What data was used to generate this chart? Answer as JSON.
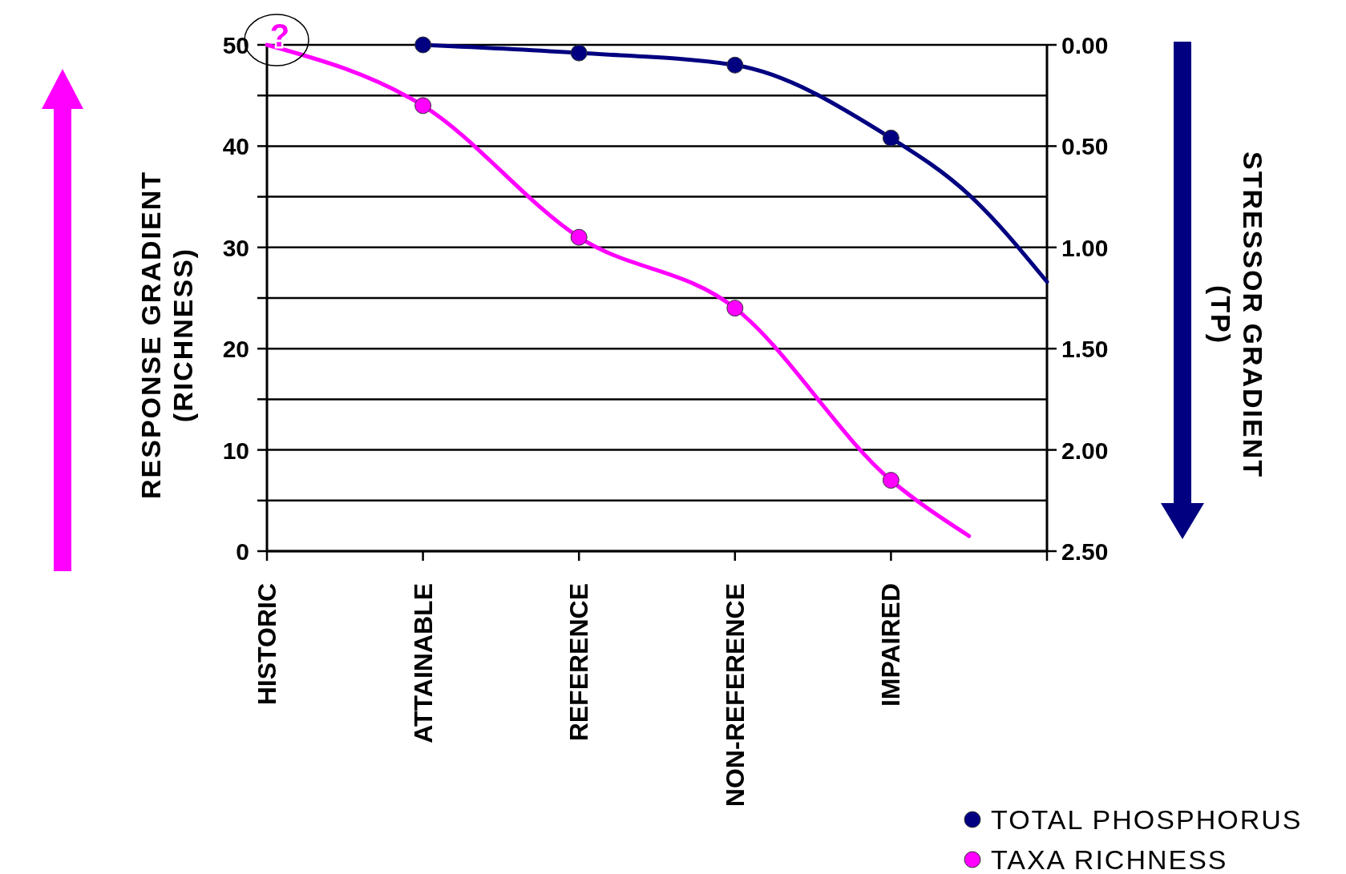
{
  "chart_data": {
    "type": "line",
    "ylabel": "RESPONSE GRADIENT\n(RICHNESS)",
    "y2label": "STRESSOR GRADIENT\n(TP)",
    "categories": [
      "HISTORIC",
      null,
      "ATTAINABLE",
      null,
      "REFERENCE",
      null,
      "NON-REFERENCE",
      null,
      "IMPAIRED",
      null,
      null
    ],
    "ylim": [
      0,
      50
    ],
    "yticks": [
      0,
      {
        "value": 5,
        "label": null
      },
      10,
      {
        "value": 15,
        "label": null
      },
      20,
      {
        "value": 25,
        "label": null
      },
      30,
      {
        "value": 35,
        "label": null
      },
      40,
      {
        "value": 45,
        "label": null
      },
      50
    ],
    "y2lim": [
      2.5,
      0
    ],
    "y2ticks": [
      {
        "value": 0,
        "label": "0.00"
      },
      {
        "value": 0.5,
        "label": "0.50"
      },
      {
        "value": 1,
        "label": "1.00"
      },
      {
        "value": 1.5,
        "label": "1.50"
      },
      {
        "value": 2,
        "label": "2.00"
      },
      {
        "value": 2.5,
        "label": "2.50"
      }
    ],
    "grid": "y",
    "legend": "bottom right",
    "annotations": [
      {
        "text": "?",
        "x": "HISTORIC",
        "y": 50
      }
    ],
    "series": [
      {
        "name": "TOTAL PHOSPHORUS",
        "type": "line",
        "axis": "y2",
        "color": "#000080",
        "marker": "circle",
        "values": [
          null,
          null,
          0.0,
          null,
          0.04,
          null,
          0.1,
          null,
          0.46,
          null,
          null
        ]
      },
      {
        "axis": "y2",
        "color": "#000080",
        "marker": "none",
        "values": [
          null,
          null,
          null,
          null,
          null,
          null,
          null,
          null,
          0.46,
          0.74,
          1.17
        ]
      },
      {
        "color": "#ff00ff",
        "marker": "none",
        "values": [
          50,
          null,
          44,
          null,
          31,
          null,
          24,
          null,
          7,
          1.5,
          null
        ]
      },
      {
        "name": "TAXA RICHNESS",
        "type": "scatter",
        "color": "#ff00ff",
        "marker": "circle",
        "values": [
          null,
          null,
          44,
          null,
          31,
          null,
          24,
          null,
          7,
          null,
          null
        ]
      }
    ]
  }
}
